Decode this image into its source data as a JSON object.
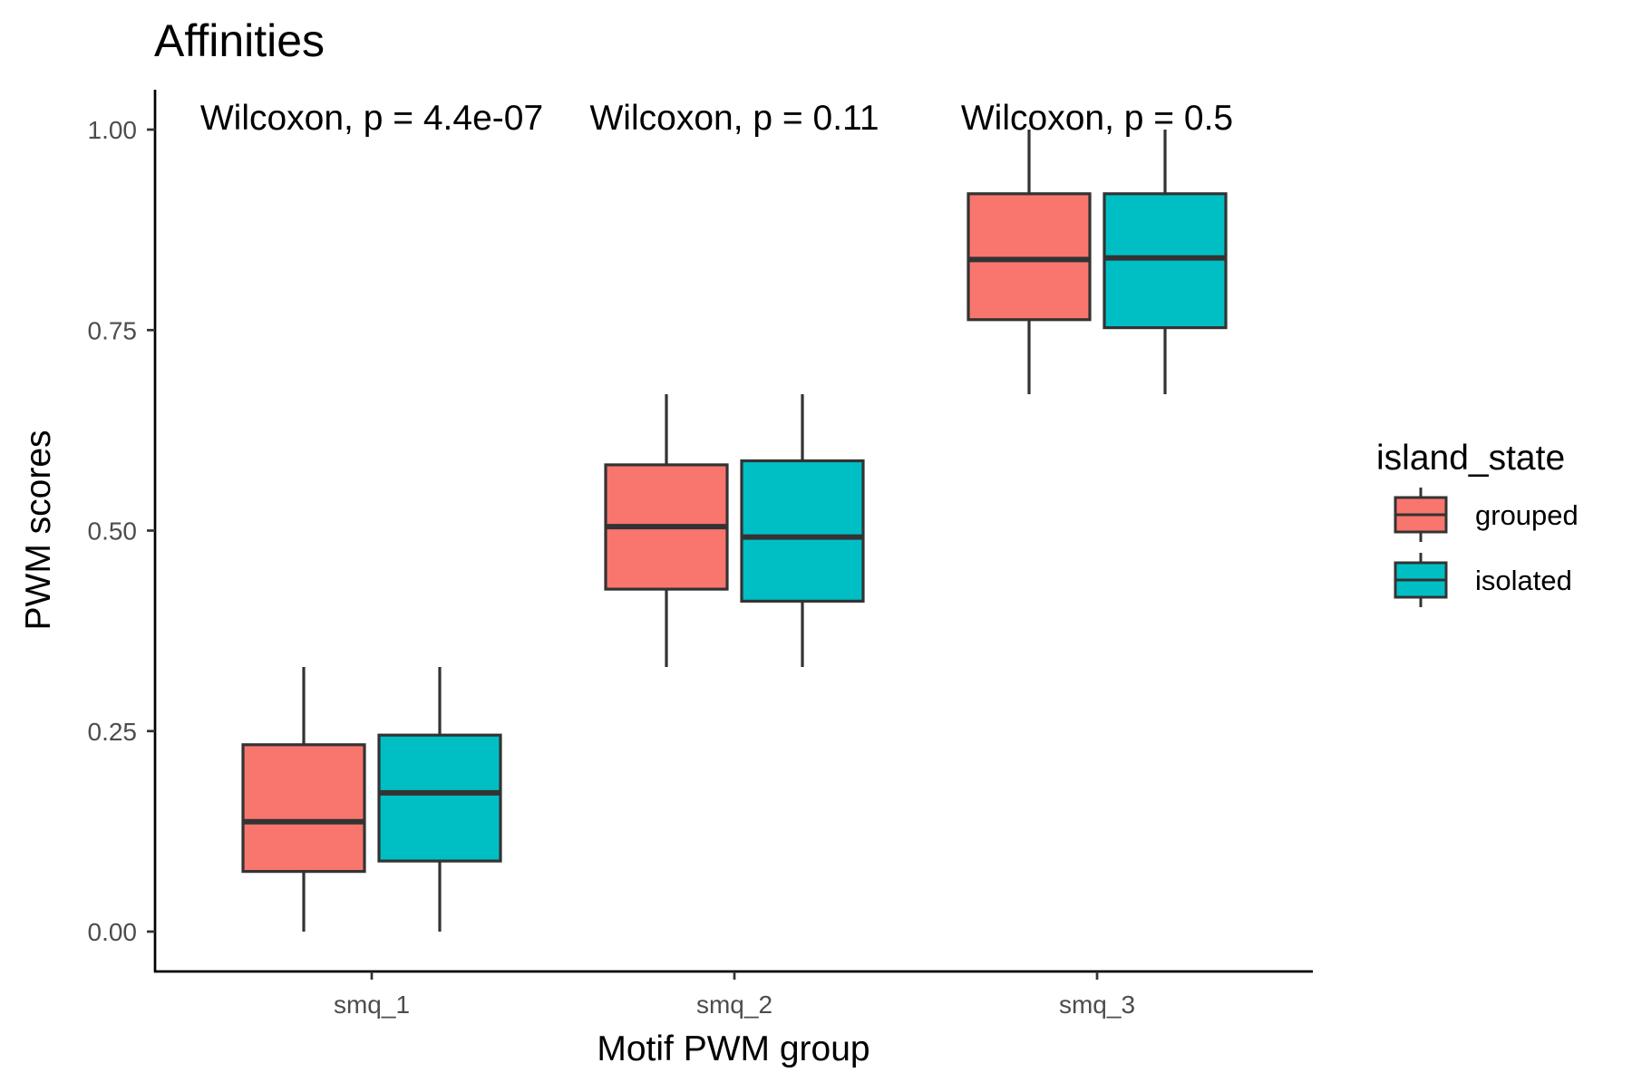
{
  "chart_data": {
    "type": "boxplot",
    "title": "Affinities",
    "xlabel": "Motif PWM group",
    "ylabel": "PWM scores",
    "categories": [
      "smq_1",
      "smq_2",
      "smq_3"
    ],
    "ylim": [
      -0.05,
      1.05
    ],
    "yticks": [
      0.0,
      0.25,
      0.5,
      0.75,
      1.0
    ],
    "ytick_labels": [
      "0.00",
      "0.25",
      "0.50",
      "0.75",
      "1.00"
    ],
    "grid": false,
    "legend": {
      "title": "island_state",
      "position": "right"
    },
    "series": [
      {
        "name": "grouped",
        "color": "#F8766D",
        "boxes": [
          {
            "category": "smq_1",
            "min": 0.0,
            "q1": 0.075,
            "median": 0.137,
            "q3": 0.233,
            "max": 0.33
          },
          {
            "category": "smq_2",
            "min": 0.33,
            "q1": 0.427,
            "median": 0.505,
            "q3": 0.582,
            "max": 0.67
          },
          {
            "category": "smq_3",
            "min": 0.67,
            "q1": 0.763,
            "median": 0.838,
            "q3": 0.92,
            "max": 1.0
          }
        ]
      },
      {
        "name": "isolated",
        "color": "#00BFC4",
        "boxes": [
          {
            "category": "smq_1",
            "min": 0.0,
            "q1": 0.088,
            "median": 0.173,
            "q3": 0.245,
            "max": 0.33
          },
          {
            "category": "smq_2",
            "min": 0.33,
            "q1": 0.412,
            "median": 0.492,
            "q3": 0.587,
            "max": 0.67
          },
          {
            "category": "smq_3",
            "min": 0.67,
            "q1": 0.753,
            "median": 0.84,
            "q3": 0.92,
            "max": 1.0
          }
        ]
      }
    ],
    "annotations": [
      {
        "category": "smq_1",
        "text": "Wilcoxon, p = 4.4e-07"
      },
      {
        "category": "smq_2",
        "text": "Wilcoxon, p = 0.11"
      },
      {
        "category": "smq_3",
        "text": "Wilcoxon, p = 0.5"
      }
    ]
  }
}
